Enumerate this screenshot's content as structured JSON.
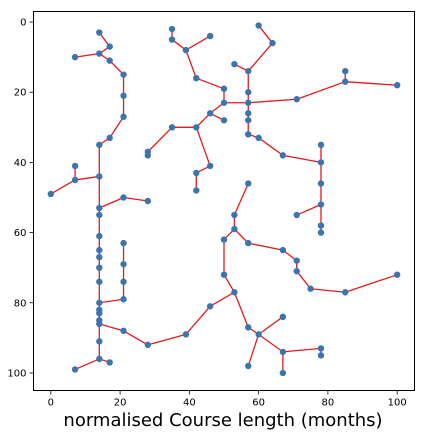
{
  "chart_data": {
    "type": "scatter",
    "title": "",
    "xlabel": "normalised Course length (months)",
    "ylabel": "",
    "xlim": [
      -5,
      105
    ],
    "ylim": [
      105,
      -3
    ],
    "y_inverted": true,
    "grid": false,
    "x_ticks": [
      0,
      20,
      40,
      60,
      80,
      100
    ],
    "y_ticks": [
      0,
      20,
      40,
      60,
      80,
      100
    ],
    "point_color": "#3b75af",
    "edge_color": "#e41a1c",
    "points": [
      [
        14,
        3
      ],
      [
        17,
        7
      ],
      [
        14,
        9
      ],
      [
        7,
        10
      ],
      [
        17,
        11
      ],
      [
        21,
        15
      ],
      [
        21,
        21
      ],
      [
        21,
        27
      ],
      [
        17,
        33
      ],
      [
        14,
        35
      ],
      [
        14,
        44
      ],
      [
        7,
        41
      ],
      [
        7,
        45
      ],
      [
        0,
        49
      ],
      [
        14,
        53
      ],
      [
        14,
        55
      ],
      [
        21,
        50
      ],
      [
        28,
        51
      ],
      [
        14,
        61
      ],
      [
        14,
        65
      ],
      [
        14,
        67
      ],
      [
        14,
        70
      ],
      [
        14,
        74
      ],
      [
        14,
        80
      ],
      [
        21,
        79
      ],
      [
        21,
        74
      ],
      [
        21,
        69
      ],
      [
        21,
        63
      ],
      [
        14,
        82
      ],
      [
        14,
        83
      ],
      [
        14,
        85
      ],
      [
        14,
        86
      ],
      [
        21,
        88
      ],
      [
        28,
        92
      ],
      [
        39,
        89
      ],
      [
        46,
        81
      ],
      [
        53,
        77
      ],
      [
        50,
        72
      ],
      [
        50,
        62
      ],
      [
        53,
        59
      ],
      [
        53,
        55
      ],
      [
        57,
        46
      ],
      [
        57,
        63
      ],
      [
        67,
        65
      ],
      [
        71,
        68
      ],
      [
        71,
        71
      ],
      [
        75,
        76
      ],
      [
        85,
        77
      ],
      [
        100,
        72
      ],
      [
        57,
        87
      ],
      [
        60,
        89
      ],
      [
        67,
        84
      ],
      [
        57,
        98
      ],
      [
        67,
        94
      ],
      [
        78,
        93
      ],
      [
        78,
        95
      ],
      [
        67,
        100
      ],
      [
        14,
        91
      ],
      [
        14,
        96
      ],
      [
        17,
        97
      ],
      [
        7,
        99
      ],
      [
        35,
        2
      ],
      [
        35,
        5
      ],
      [
        39,
        8
      ],
      [
        46,
        4
      ],
      [
        42,
        16
      ],
      [
        50,
        19
      ],
      [
        50,
        23
      ],
      [
        57,
        23
      ],
      [
        71,
        22
      ],
      [
        85,
        17
      ],
      [
        85,
        14
      ],
      [
        100,
        18
      ],
      [
        57,
        20
      ],
      [
        57,
        14
      ],
      [
        53,
        12
      ],
      [
        64,
        6
      ],
      [
        60,
        1
      ],
      [
        46,
        26
      ],
      [
        50,
        28
      ],
      [
        57,
        26
      ],
      [
        57,
        28
      ],
      [
        57,
        32
      ],
      [
        60,
        33
      ],
      [
        67,
        38
      ],
      [
        78,
        40
      ],
      [
        78,
        35
      ],
      [
        78,
        46
      ],
      [
        78,
        52
      ],
      [
        71,
        55
      ],
      [
        78,
        58
      ],
      [
        78,
        60
      ],
      [
        42,
        30
      ],
      [
        35,
        30
      ],
      [
        28,
        37
      ],
      [
        28,
        38
      ],
      [
        46,
        41
      ],
      [
        42,
        43
      ],
      [
        42,
        48
      ]
    ],
    "edges": [
      [
        [
          14,
          3
        ],
        [
          17,
          7
        ]
      ],
      [
        [
          17,
          7
        ],
        [
          14,
          9
        ]
      ],
      [
        [
          14,
          9
        ],
        [
          7,
          10
        ]
      ],
      [
        [
          14,
          9
        ],
        [
          17,
          11
        ]
      ],
      [
        [
          17,
          11
        ],
        [
          21,
          15
        ]
      ],
      [
        [
          21,
          15
        ],
        [
          21,
          21
        ]
      ],
      [
        [
          21,
          21
        ],
        [
          21,
          27
        ]
      ],
      [
        [
          21,
          27
        ],
        [
          17,
          33
        ]
      ],
      [
        [
          17,
          33
        ],
        [
          14,
          35
        ]
      ],
      [
        [
          14,
          35
        ],
        [
          14,
          44
        ]
      ],
      [
        [
          14,
          44
        ],
        [
          7,
          45
        ]
      ],
      [
        [
          7,
          45
        ],
        [
          7,
          41
        ]
      ],
      [
        [
          7,
          45
        ],
        [
          0,
          49
        ]
      ],
      [
        [
          14,
          44
        ],
        [
          14,
          53
        ]
      ],
      [
        [
          14,
          53
        ],
        [
          21,
          50
        ]
      ],
      [
        [
          21,
          50
        ],
        [
          28,
          51
        ]
      ],
      [
        [
          14,
          53
        ],
        [
          14,
          55
        ]
      ],
      [
        [
          14,
          55
        ],
        [
          14,
          61
        ]
      ],
      [
        [
          14,
          61
        ],
        [
          14,
          65
        ]
      ],
      [
        [
          14,
          65
        ],
        [
          14,
          67
        ]
      ],
      [
        [
          14,
          67
        ],
        [
          14,
          70
        ]
      ],
      [
        [
          14,
          70
        ],
        [
          14,
          74
        ]
      ],
      [
        [
          14,
          74
        ],
        [
          14,
          80
        ]
      ],
      [
        [
          14,
          80
        ],
        [
          21,
          79
        ]
      ],
      [
        [
          21,
          79
        ],
        [
          21,
          74
        ]
      ],
      [
        [
          21,
          74
        ],
        [
          21,
          69
        ]
      ],
      [
        [
          21,
          69
        ],
        [
          21,
          63
        ]
      ],
      [
        [
          14,
          80
        ],
        [
          14,
          82
        ]
      ],
      [
        [
          14,
          82
        ],
        [
          14,
          83
        ]
      ],
      [
        [
          14,
          83
        ],
        [
          14,
          85
        ]
      ],
      [
        [
          14,
          85
        ],
        [
          14,
          86
        ]
      ],
      [
        [
          14,
          86
        ],
        [
          21,
          88
        ]
      ],
      [
        [
          21,
          88
        ],
        [
          28,
          92
        ]
      ],
      [
        [
          28,
          92
        ],
        [
          39,
          89
        ]
      ],
      [
        [
          39,
          89
        ],
        [
          46,
          81
        ]
      ],
      [
        [
          46,
          81
        ],
        [
          53,
          77
        ]
      ],
      [
        [
          53,
          77
        ],
        [
          50,
          72
        ]
      ],
      [
        [
          50,
          72
        ],
        [
          50,
          62
        ]
      ],
      [
        [
          50,
          62
        ],
        [
          53,
          59
        ]
      ],
      [
        [
          53,
          59
        ],
        [
          53,
          55
        ]
      ],
      [
        [
          53,
          55
        ],
        [
          57,
          46
        ]
      ],
      [
        [
          53,
          59
        ],
        [
          57,
          63
        ]
      ],
      [
        [
          57,
          63
        ],
        [
          67,
          65
        ]
      ],
      [
        [
          67,
          65
        ],
        [
          71,
          68
        ]
      ],
      [
        [
          71,
          68
        ],
        [
          71,
          71
        ]
      ],
      [
        [
          71,
          71
        ],
        [
          75,
          76
        ]
      ],
      [
        [
          75,
          76
        ],
        [
          85,
          77
        ]
      ],
      [
        [
          85,
          77
        ],
        [
          100,
          72
        ]
      ],
      [
        [
          53,
          77
        ],
        [
          57,
          87
        ]
      ],
      [
        [
          57,
          87
        ],
        [
          60,
          89
        ]
      ],
      [
        [
          60,
          89
        ],
        [
          67,
          84
        ]
      ],
      [
        [
          60,
          89
        ],
        [
          57,
          98
        ]
      ],
      [
        [
          60,
          89
        ],
        [
          67,
          94
        ]
      ],
      [
        [
          67,
          94
        ],
        [
          78,
          93
        ]
      ],
      [
        [
          78,
          93
        ],
        [
          78,
          95
        ]
      ],
      [
        [
          67,
          94
        ],
        [
          67,
          100
        ]
      ],
      [
        [
          14,
          86
        ],
        [
          14,
          91
        ]
      ],
      [
        [
          14,
          91
        ],
        [
          14,
          96
        ]
      ],
      [
        [
          14,
          96
        ],
        [
          17,
          97
        ]
      ],
      [
        [
          14,
          96
        ],
        [
          7,
          99
        ]
      ],
      [
        [
          35,
          2
        ],
        [
          35,
          5
        ]
      ],
      [
        [
          35,
          5
        ],
        [
          39,
          8
        ]
      ],
      [
        [
          39,
          8
        ],
        [
          46,
          4
        ]
      ],
      [
        [
          39,
          8
        ],
        [
          42,
          16
        ]
      ],
      [
        [
          42,
          16
        ],
        [
          50,
          19
        ]
      ],
      [
        [
          50,
          19
        ],
        [
          50,
          23
        ]
      ],
      [
        [
          50,
          23
        ],
        [
          57,
          23
        ]
      ],
      [
        [
          57,
          23
        ],
        [
          71,
          22
        ]
      ],
      [
        [
          71,
          22
        ],
        [
          85,
          17
        ]
      ],
      [
        [
          85,
          17
        ],
        [
          85,
          14
        ]
      ],
      [
        [
          85,
          17
        ],
        [
          100,
          18
        ]
      ],
      [
        [
          57,
          23
        ],
        [
          57,
          20
        ]
      ],
      [
        [
          57,
          20
        ],
        [
          57,
          14
        ]
      ],
      [
        [
          57,
          14
        ],
        [
          53,
          12
        ]
      ],
      [
        [
          57,
          14
        ],
        [
          64,
          6
        ]
      ],
      [
        [
          64,
          6
        ],
        [
          60,
          1
        ]
      ],
      [
        [
          50,
          23
        ],
        [
          46,
          26
        ]
      ],
      [
        [
          46,
          26
        ],
        [
          50,
          28
        ]
      ],
      [
        [
          57,
          23
        ],
        [
          57,
          26
        ]
      ],
      [
        [
          57,
          26
        ],
        [
          57,
          28
        ]
      ],
      [
        [
          57,
          28
        ],
        [
          57,
          32
        ]
      ],
      [
        [
          57,
          32
        ],
        [
          60,
          33
        ]
      ],
      [
        [
          60,
          33
        ],
        [
          67,
          38
        ]
      ],
      [
        [
          67,
          38
        ],
        [
          78,
          40
        ]
      ],
      [
        [
          78,
          40
        ],
        [
          78,
          35
        ]
      ],
      [
        [
          78,
          40
        ],
        [
          78,
          46
        ]
      ],
      [
        [
          78,
          46
        ],
        [
          78,
          52
        ]
      ],
      [
        [
          78,
          52
        ],
        [
          71,
          55
        ]
      ],
      [
        [
          78,
          52
        ],
        [
          78,
          58
        ]
      ],
      [
        [
          78,
          58
        ],
        [
          78,
          60
        ]
      ],
      [
        [
          46,
          26
        ],
        [
          42,
          30
        ]
      ],
      [
        [
          42,
          30
        ],
        [
          35,
          30
        ]
      ],
      [
        [
          35,
          30
        ],
        [
          28,
          37
        ]
      ],
      [
        [
          28,
          37
        ],
        [
          28,
          38
        ]
      ],
      [
        [
          42,
          30
        ],
        [
          46,
          41
        ]
      ],
      [
        [
          46,
          41
        ],
        [
          42,
          43
        ]
      ],
      [
        [
          42,
          43
        ],
        [
          42,
          48
        ]
      ]
    ]
  }
}
